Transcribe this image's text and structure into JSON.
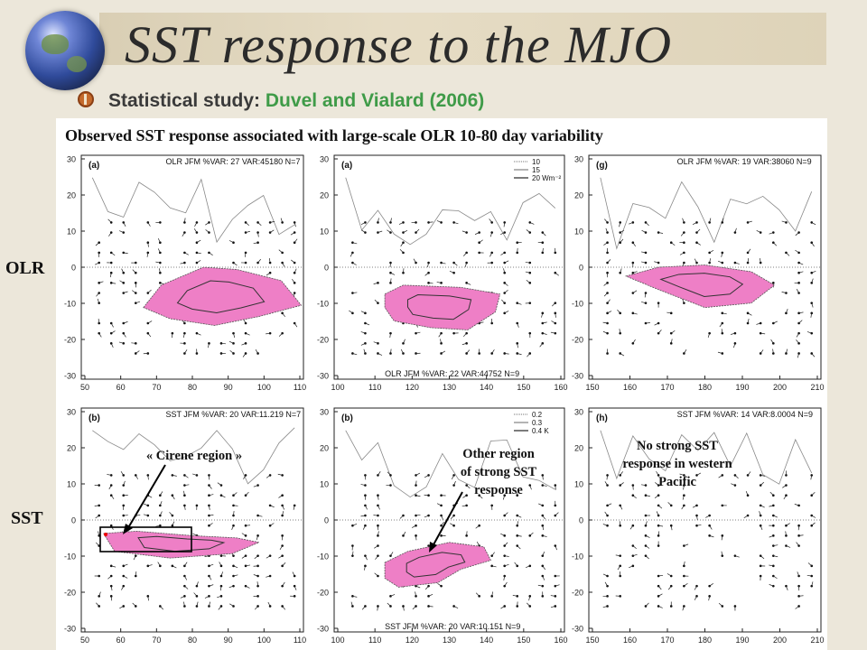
{
  "title": "SST response to the MJO",
  "bullet": {
    "label": "Statistical study:",
    "citation": "Duvel and Vialard (2006)"
  },
  "caption": "Observed SST response associated with large-scale OLR 10-80 day variability",
  "row_labels": {
    "olr": "OLR",
    "sst": "SST"
  },
  "maps": [
    {
      "id": "olr-io",
      "tag": "(a)",
      "header": "OLR JFM %VAR: 27 VAR:45180 N=7",
      "footer": "",
      "xticks": [
        "50",
        "60",
        "70",
        "80",
        "90",
        "100",
        "110"
      ],
      "yticks": [
        "30",
        "20",
        "10",
        "0",
        "-10",
        "-20",
        "-30"
      ],
      "legend": []
    },
    {
      "id": "olr-mc",
      "tag": "(a)",
      "header": "",
      "footer": "OLR JFM %VAR: 22 VAR:44752 N=9",
      "xticks": [
        "100",
        "110",
        "120",
        "130",
        "140",
        "150",
        "160"
      ],
      "yticks": [
        "30",
        "20",
        "10",
        "0",
        "-10",
        "-20",
        "-30"
      ],
      "legend": [
        "10",
        "15",
        "20 Wm⁻²"
      ]
    },
    {
      "id": "olr-wp",
      "tag": "(g)",
      "header": "OLR JFM %VAR: 19 VAR:38060 N=9",
      "footer": "",
      "xticks": [
        "150",
        "160",
        "170",
        "180",
        "190",
        "200",
        "210"
      ],
      "yticks": [
        "30",
        "20",
        "10",
        "0",
        "-10",
        "-20",
        "-30"
      ],
      "legend": []
    },
    {
      "id": "sst-io",
      "tag": "(b)",
      "header": "SST JFM %VAR: 20 VAR:11.219 N=7",
      "footer": "",
      "xticks": [
        "50",
        "60",
        "70",
        "80",
        "90",
        "100",
        "110"
      ],
      "yticks": [
        "30",
        "20",
        "10",
        "0",
        "-10",
        "-20",
        "-30"
      ],
      "legend": []
    },
    {
      "id": "sst-mc",
      "tag": "(b)",
      "header": "",
      "footer": "SST JFM %VAR: 20 VAR:10.151 N=9",
      "xticks": [
        "100",
        "110",
        "120",
        "130",
        "140",
        "150",
        "160"
      ],
      "yticks": [
        "30",
        "20",
        "10",
        "0",
        "-10",
        "-20",
        "-30"
      ],
      "legend": [
        "0.2",
        "0.3",
        "0.4 K"
      ]
    },
    {
      "id": "sst-wp",
      "tag": "(h)",
      "header": "SST JFM %VAR: 14 VAR:8.0004 N=9",
      "footer": "",
      "xticks": [
        "150",
        "160",
        "170",
        "180",
        "190",
        "200",
        "210"
      ],
      "yticks": [
        "30",
        "20",
        "10",
        "0",
        "-10",
        "-20",
        "-30"
      ],
      "legend": []
    }
  ],
  "annotations": {
    "cirene": "« Cirene  region »",
    "other_line1": "Other region",
    "other_line2": "of strong SST",
    "other_line3": "response",
    "nostrong_line1": "No strong SST",
    "nostrong_line2": "response in western",
    "nostrong_line3": "Pacific"
  },
  "colors": {
    "pink": "#ee7fc6",
    "background": "#ece7da",
    "citation": "#3f9b48"
  }
}
